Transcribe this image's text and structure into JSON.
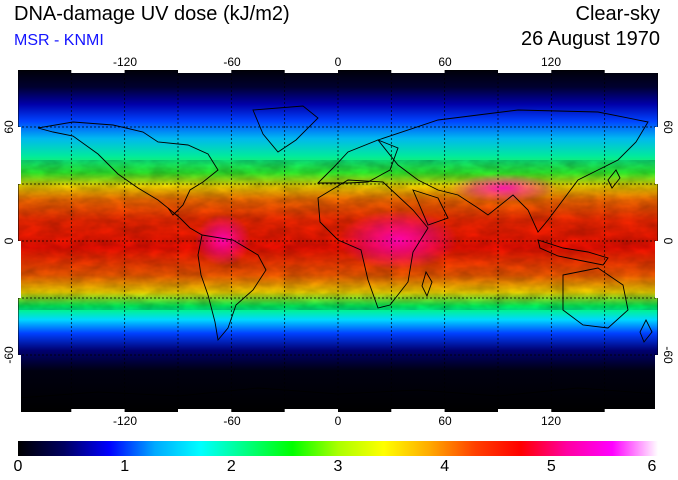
{
  "header": {
    "title": "DNA-damage UV dose (kJ/m2)",
    "source": "MSR - KNMI",
    "sky": "Clear-sky",
    "date": "26 August 1970"
  },
  "map": {
    "projection": "equirectangular",
    "lon_range": [
      -180,
      180
    ],
    "lat_range": [
      -90,
      90
    ],
    "lon_ticks": [
      "-120",
      "-60",
      "0",
      "60",
      "120"
    ],
    "lat_ticks": [
      "60",
      "0",
      "-60"
    ],
    "graticule": "dashed",
    "colors": {
      "background": "#000000",
      "coastline": "#000000",
      "grid": "#000000"
    }
  },
  "colorbar": {
    "labels": [
      "0",
      "1",
      "2",
      "3",
      "4",
      "5",
      "6"
    ],
    "range": [
      0,
      6
    ],
    "stops": [
      "#000000",
      "#000060",
      "#0000ff",
      "#00aaff",
      "#00ffff",
      "#00ff80",
      "#00ff00",
      "#aaff00",
      "#ffff00",
      "#ffaa00",
      "#ff4000",
      "#ff0000",
      "#ff00a0",
      "#ff00ff",
      "#ffffff"
    ]
  }
}
